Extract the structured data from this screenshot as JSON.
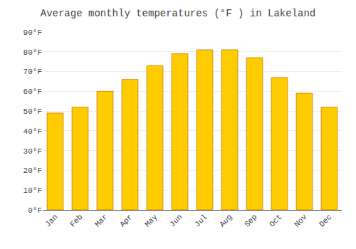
{
  "chart_data": {
    "type": "bar",
    "title": "Average monthly temperatures (°F ) in Lakeland",
    "categories": [
      "Jan",
      "Feb",
      "Mar",
      "Apr",
      "May",
      "Jun",
      "Jul",
      "Aug",
      "Sep",
      "Oct",
      "Nov",
      "Dec"
    ],
    "values": [
      49,
      52,
      60,
      66,
      73,
      79,
      81,
      81,
      77,
      67,
      59,
      52
    ],
    "color": "#FFCC00",
    "ylim": [
      0,
      90
    ],
    "yticks": [
      {
        "value": 0,
        "label": "0°F"
      },
      {
        "value": 10,
        "label": "10°F"
      },
      {
        "value": 20,
        "label": "20°F"
      },
      {
        "value": 30,
        "label": "30°F"
      },
      {
        "value": 40,
        "label": "40°F"
      },
      {
        "value": 50,
        "label": "50°F"
      },
      {
        "value": 60,
        "label": "60°F"
      },
      {
        "value": 70,
        "label": "70°F"
      },
      {
        "value": 80,
        "label": "80°F"
      },
      {
        "value": 90,
        "label": "90°F"
      }
    ],
    "grid": true
  }
}
